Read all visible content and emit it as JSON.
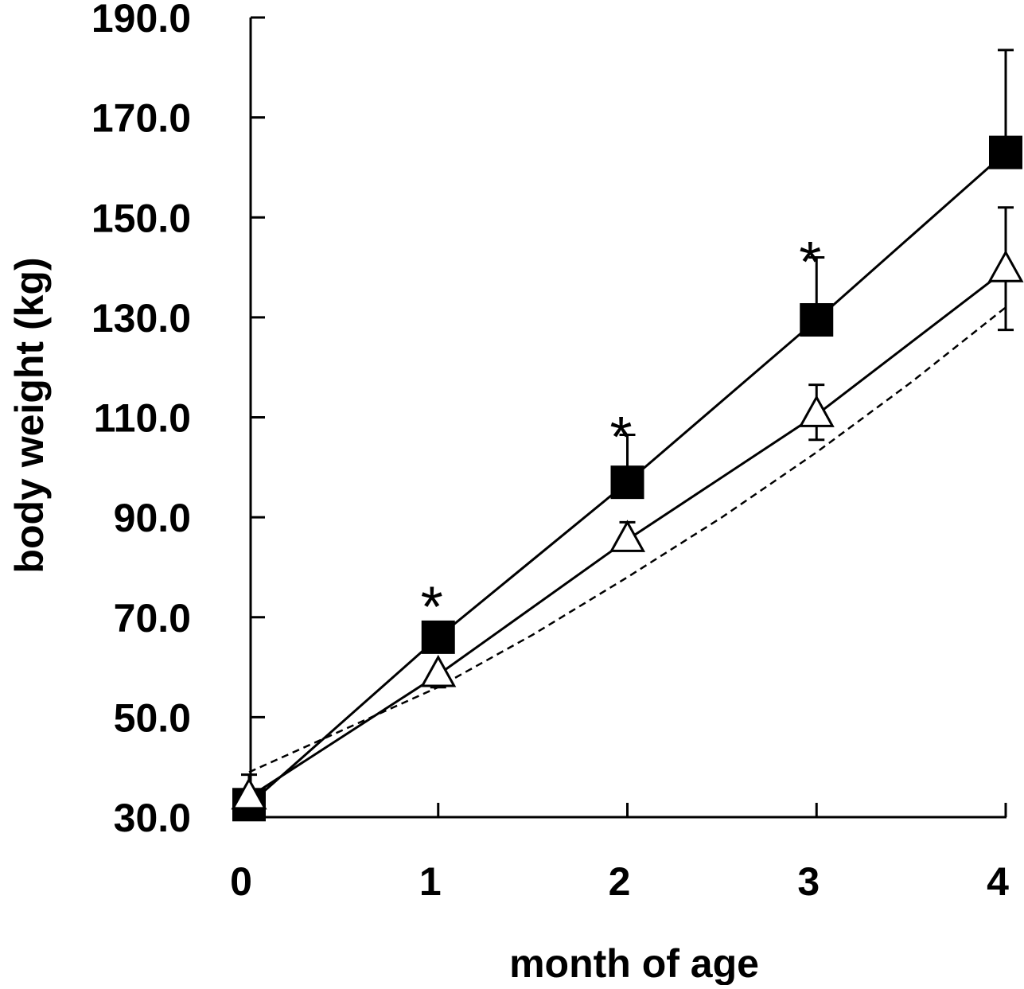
{
  "chart_data": {
    "type": "line",
    "xlabel": "month of age",
    "ylabel": "body weight (kg)",
    "xlim": [
      0,
      4
    ],
    "ylim": [
      30,
      190
    ],
    "x_ticks": [
      0,
      1,
      2,
      3,
      4
    ],
    "x_tick_labels": [
      "0",
      "1",
      "2",
      "3",
      "4"
    ],
    "y_ticks": [
      30,
      50,
      70,
      90,
      110,
      130,
      150,
      170,
      190
    ],
    "y_tick_labels": [
      "30.0",
      "50.0",
      "70.0",
      "90.0",
      "110.0",
      "130.0",
      "150.0",
      "170.0",
      "190.0"
    ],
    "grid": false,
    "legend": "none",
    "series": [
      {
        "marker": "filled-square",
        "line": "solid",
        "color": "#000000",
        "x": [
          0,
          1,
          2,
          3,
          4
        ],
        "y": [
          32.5,
          66.0,
          97.0,
          129.5,
          163.0
        ],
        "error_upper": [
          38.5,
          null,
          106.5,
          142.0,
          183.5
        ]
      },
      {
        "marker": "open-triangle",
        "line": "solid",
        "color": "#000000",
        "x": [
          0,
          1,
          2,
          3,
          4
        ],
        "y": [
          34.0,
          58.5,
          85.5,
          110.5,
          139.5
        ],
        "error_upper": [
          null,
          null,
          89.0,
          116.5,
          152.0
        ],
        "error_lower": [
          null,
          56.0,
          null,
          105.5,
          127.5
        ]
      },
      {
        "marker": "none",
        "line": "dashed",
        "color": "#000000",
        "x": [
          0,
          0.5,
          1,
          1.5,
          2,
          2.5,
          3,
          3.5,
          4
        ],
        "y": [
          39.0,
          47.5,
          56.0,
          66.5,
          78.0,
          90.0,
          103.0,
          117.0,
          132.0
        ]
      }
    ],
    "annotations": [
      {
        "text": "*",
        "x": 1,
        "y": 74.5
      },
      {
        "text": "*",
        "x": 2,
        "y": 108.5
      },
      {
        "text": "*",
        "x": 3,
        "y": 143.5
      }
    ]
  }
}
